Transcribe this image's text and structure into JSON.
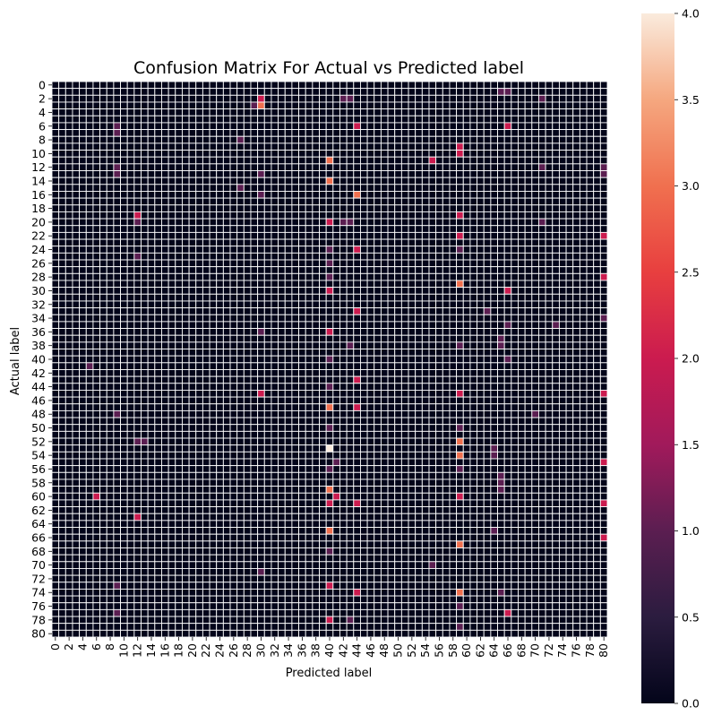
{
  "chart_data": {
    "type": "heatmap",
    "title": "Confusion Matrix For Actual vs Predicted label",
    "xlabel": "Predicted label",
    "ylabel": "Actual label",
    "n_classes": 81,
    "x_tick_labels": [
      "0",
      "2",
      "4",
      "6",
      "8",
      "10",
      "12",
      "14",
      "16",
      "18",
      "20",
      "22",
      "24",
      "26",
      "28",
      "30",
      "32",
      "34",
      "36",
      "38",
      "40",
      "42",
      "44",
      "46",
      "48",
      "50",
      "52",
      "54",
      "56",
      "58",
      "60",
      "62",
      "64",
      "66",
      "68",
      "70",
      "72",
      "74",
      "76",
      "78",
      "80"
    ],
    "y_tick_labels": [
      "0",
      "2",
      "4",
      "6",
      "8",
      "10",
      "12",
      "14",
      "16",
      "18",
      "20",
      "22",
      "24",
      "26",
      "28",
      "30",
      "32",
      "34",
      "36",
      "38",
      "40",
      "42",
      "44",
      "46",
      "48",
      "50",
      "52",
      "54",
      "56",
      "58",
      "60",
      "62",
      "64",
      "66",
      "68",
      "70",
      "72",
      "74",
      "76",
      "78",
      "80"
    ],
    "colorbar": {
      "range": [
        0,
        4
      ],
      "tick_labels": [
        "0.0",
        "0.5",
        "1.0",
        "1.5",
        "2.0",
        "2.5",
        "3.0",
        "3.5",
        "4.0"
      ],
      "tick_values": [
        0,
        0.5,
        1.0,
        1.5,
        2.0,
        2.5,
        3.0,
        3.5,
        4.0
      ]
    },
    "default_value": 0,
    "nonzero_cells": [
      {
        "row": 3,
        "col": 30,
        "value": 3
      },
      {
        "row": 3,
        "col": 29,
        "value": 1
      },
      {
        "row": 2,
        "col": 30,
        "value": 2
      },
      {
        "row": 53,
        "col": 40,
        "value": 4
      },
      {
        "row": 16,
        "col": 44,
        "value": 3
      },
      {
        "row": 14,
        "col": 40,
        "value": 3
      },
      {
        "row": 11,
        "col": 40,
        "value": 3
      },
      {
        "row": 47,
        "col": 40,
        "value": 3
      },
      {
        "row": 59,
        "col": 40,
        "value": 3
      },
      {
        "row": 65,
        "col": 40,
        "value": 3
      },
      {
        "row": 29,
        "col": 59,
        "value": 3
      },
      {
        "row": 52,
        "col": 59,
        "value": 3
      },
      {
        "row": 54,
        "col": 59,
        "value": 3
      },
      {
        "row": 67,
        "col": 59,
        "value": 3
      },
      {
        "row": 74,
        "col": 59,
        "value": 3
      },
      {
        "row": 11,
        "col": 55,
        "value": 2
      },
      {
        "row": 19,
        "col": 12,
        "value": 2
      },
      {
        "row": 63,
        "col": 12,
        "value": 2
      },
      {
        "row": 60,
        "col": 6,
        "value": 2
      },
      {
        "row": 60,
        "col": 41,
        "value": 2
      },
      {
        "row": 6,
        "col": 66,
        "value": 2
      },
      {
        "row": 30,
        "col": 66,
        "value": 2
      },
      {
        "row": 77,
        "col": 66,
        "value": 2
      },
      {
        "row": 6,
        "col": 44,
        "value": 2
      },
      {
        "row": 24,
        "col": 44,
        "value": 2
      },
      {
        "row": 33,
        "col": 44,
        "value": 2
      },
      {
        "row": 43,
        "col": 44,
        "value": 2
      },
      {
        "row": 47,
        "col": 44,
        "value": 2
      },
      {
        "row": 61,
        "col": 44,
        "value": 2
      },
      {
        "row": 74,
        "col": 44,
        "value": 2
      },
      {
        "row": 9,
        "col": 59,
        "value": 2
      },
      {
        "row": 10,
        "col": 59,
        "value": 2
      },
      {
        "row": 19,
        "col": 59,
        "value": 2
      },
      {
        "row": 22,
        "col": 59,
        "value": 2
      },
      {
        "row": 45,
        "col": 59,
        "value": 2
      },
      {
        "row": 60,
        "col": 59,
        "value": 2
      },
      {
        "row": 20,
        "col": 40,
        "value": 2
      },
      {
        "row": 30,
        "col": 40,
        "value": 2
      },
      {
        "row": 36,
        "col": 40,
        "value": 2
      },
      {
        "row": 61,
        "col": 40,
        "value": 2
      },
      {
        "row": 73,
        "col": 40,
        "value": 2
      },
      {
        "row": 78,
        "col": 40,
        "value": 2
      },
      {
        "row": 45,
        "col": 30,
        "value": 2
      },
      {
        "row": 22,
        "col": 80,
        "value": 2
      },
      {
        "row": 28,
        "col": 80,
        "value": 2
      },
      {
        "row": 45,
        "col": 80,
        "value": 2
      },
      {
        "row": 55,
        "col": 80,
        "value": 2
      },
      {
        "row": 61,
        "col": 80,
        "value": 2
      },
      {
        "row": 66,
        "col": 80,
        "value": 2
      },
      {
        "row": 2,
        "col": 43,
        "value": 1
      },
      {
        "row": 2,
        "col": 42,
        "value": 1
      },
      {
        "row": 6,
        "col": 9,
        "value": 1
      },
      {
        "row": 7,
        "col": 9,
        "value": 1
      },
      {
        "row": 13,
        "col": 9,
        "value": 1
      },
      {
        "row": 12,
        "col": 9,
        "value": 1
      },
      {
        "row": 1,
        "col": 65,
        "value": 1
      },
      {
        "row": 1,
        "col": 66,
        "value": 1
      },
      {
        "row": 2,
        "col": 71,
        "value": 1
      },
      {
        "row": 12,
        "col": 80,
        "value": 1
      },
      {
        "row": 20,
        "col": 12,
        "value": 1
      },
      {
        "row": 25,
        "col": 12,
        "value": 1
      },
      {
        "row": 52,
        "col": 12,
        "value": 1
      },
      {
        "row": 52,
        "col": 13,
        "value": 1
      },
      {
        "row": 48,
        "col": 9,
        "value": 1
      },
      {
        "row": 73,
        "col": 9,
        "value": 1
      },
      {
        "row": 77,
        "col": 9,
        "value": 1
      },
      {
        "row": 55,
        "col": 41,
        "value": 1
      },
      {
        "row": 40,
        "col": 40,
        "value": 1
      },
      {
        "row": 44,
        "col": 40,
        "value": 1
      },
      {
        "row": 50,
        "col": 40,
        "value": 1
      },
      {
        "row": 56,
        "col": 40,
        "value": 1
      },
      {
        "row": 68,
        "col": 40,
        "value": 1
      },
      {
        "row": 24,
        "col": 40,
        "value": 1
      },
      {
        "row": 26,
        "col": 40,
        "value": 1
      },
      {
        "row": 28,
        "col": 40,
        "value": 1
      },
      {
        "row": 13,
        "col": 30,
        "value": 1
      },
      {
        "row": 16,
        "col": 30,
        "value": 1
      },
      {
        "row": 36,
        "col": 30,
        "value": 1
      },
      {
        "row": 71,
        "col": 30,
        "value": 1
      },
      {
        "row": 37,
        "col": 65,
        "value": 1
      },
      {
        "row": 38,
        "col": 65,
        "value": 1
      },
      {
        "row": 57,
        "col": 65,
        "value": 1
      },
      {
        "row": 58,
        "col": 65,
        "value": 1
      },
      {
        "row": 59,
        "col": 65,
        "value": 1
      },
      {
        "row": 74,
        "col": 65,
        "value": 1
      },
      {
        "row": 53,
        "col": 64,
        "value": 1
      },
      {
        "row": 54,
        "col": 64,
        "value": 1
      },
      {
        "row": 35,
        "col": 66,
        "value": 1
      },
      {
        "row": 40,
        "col": 66,
        "value": 1
      },
      {
        "row": 24,
        "col": 59,
        "value": 1
      },
      {
        "row": 38,
        "col": 59,
        "value": 1
      },
      {
        "row": 50,
        "col": 59,
        "value": 1
      },
      {
        "row": 56,
        "col": 59,
        "value": 1
      },
      {
        "row": 76,
        "col": 59,
        "value": 1
      },
      {
        "row": 79,
        "col": 59,
        "value": 1
      },
      {
        "row": 33,
        "col": 63,
        "value": 1
      },
      {
        "row": 65,
        "col": 64,
        "value": 1
      },
      {
        "row": 48,
        "col": 70,
        "value": 1
      },
      {
        "row": 20,
        "col": 43,
        "value": 1
      },
      {
        "row": 38,
        "col": 43,
        "value": 1
      },
      {
        "row": 15,
        "col": 27,
        "value": 1
      },
      {
        "row": 8,
        "col": 27,
        "value": 1
      },
      {
        "row": 20,
        "col": 42,
        "value": 1
      },
      {
        "row": 78,
        "col": 43,
        "value": 1
      },
      {
        "row": 70,
        "col": 55,
        "value": 1
      },
      {
        "row": 35,
        "col": 73,
        "value": 1
      },
      {
        "row": 20,
        "col": 71,
        "value": 1
      },
      {
        "row": 12,
        "col": 71,
        "value": 1
      },
      {
        "row": 41,
        "col": 5,
        "value": 1
      },
      {
        "row": 13,
        "col": 80,
        "value": 1
      },
      {
        "row": 34,
        "col": 80,
        "value": 1
      }
    ]
  }
}
